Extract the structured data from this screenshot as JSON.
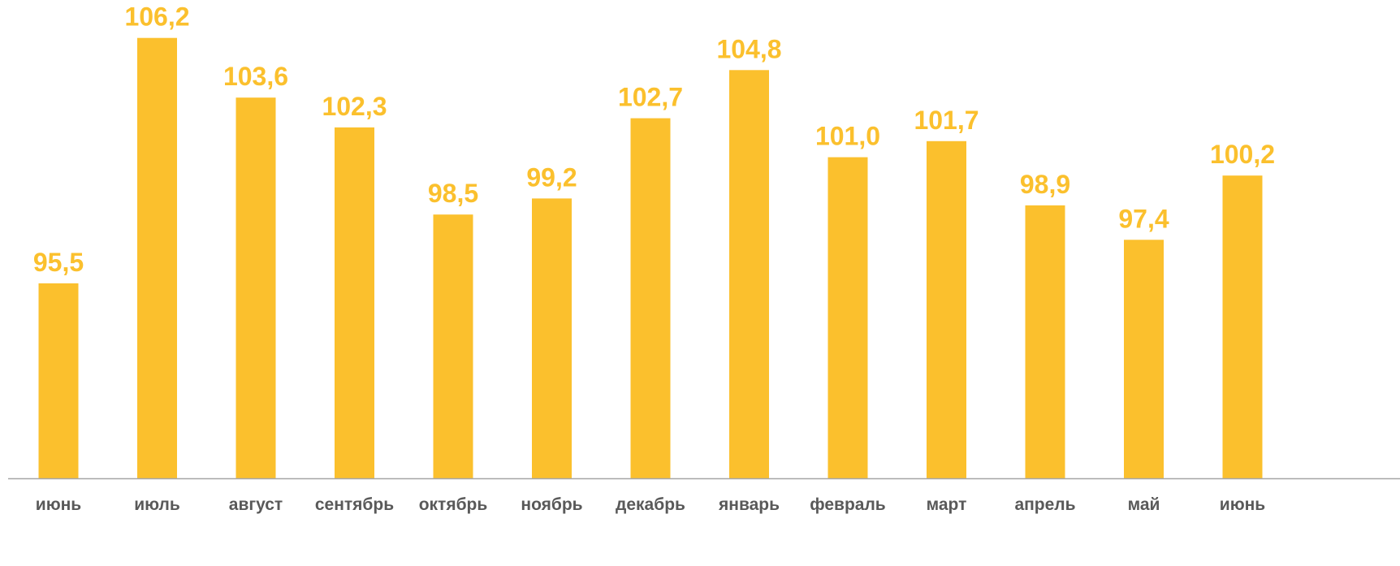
{
  "chart_data": {
    "type": "bar",
    "categories": [
      "июнь",
      "июль",
      "август",
      "сентябрь",
      "октябрь",
      "ноябрь",
      "декабрь",
      "январь",
      "февраль",
      "март",
      "апрель",
      "май",
      "июнь"
    ],
    "values": [
      95.5,
      106.2,
      103.6,
      102.3,
      98.5,
      99.2,
      102.7,
      104.8,
      101.0,
      101.7,
      98.9,
      97.4,
      100.2
    ],
    "value_labels": [
      "95,5",
      "106,2",
      "103,6",
      "102,3",
      "98,5",
      "99,2",
      "102,7",
      "104,8",
      "101,0",
      "101,7",
      "98,9",
      "97,4",
      "100,2"
    ],
    "title": "",
    "xlabel": "",
    "ylabel": "",
    "ylim": [
      87,
      107.5
    ],
    "grid": false,
    "legend": "none",
    "colors": {
      "bar": "#FBC02D",
      "value_label": "#FBC02D",
      "axis_line": "#A6A6A6",
      "tick_label": "#595959"
    }
  }
}
